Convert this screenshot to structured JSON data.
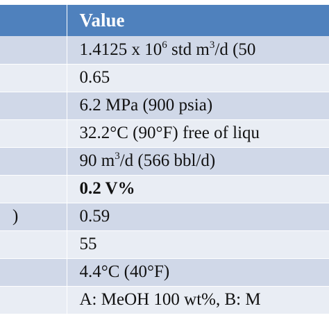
{
  "table": {
    "header": {
      "label": "",
      "value": "Value"
    },
    "rows": [
      {
        "label": "",
        "value_pre": "1.4125 x 10",
        "value_sup1": "6",
        "value_mid": " std m",
        "value_sup2": "3",
        "value_post": "/d (50"
      },
      {
        "label": "",
        "value": "0.65"
      },
      {
        "label": "",
        "value": "6.2 MPa (900 psia)"
      },
      {
        "label": "",
        "value": "32.2°C (90°F) free of liqu"
      },
      {
        "label": "",
        "value_pre": "90 m",
        "value_sup": "3",
        "value_post": "/d (566 bbl/d)"
      },
      {
        "label": "",
        "value": "0.2 V%",
        "bold": true
      },
      {
        "label": ")",
        "value": "0.59"
      },
      {
        "label": "",
        "value": "55"
      },
      {
        "label": "",
        "value": "4.4°C (40°F)"
      },
      {
        "label": "",
        "value": "A: MeOH 100 wt%, B: M"
      }
    ]
  },
  "colors": {
    "header_bg": "#4f81bd",
    "row_band_dark": "#d0d8e8",
    "row_band_light": "#e9edf4"
  }
}
